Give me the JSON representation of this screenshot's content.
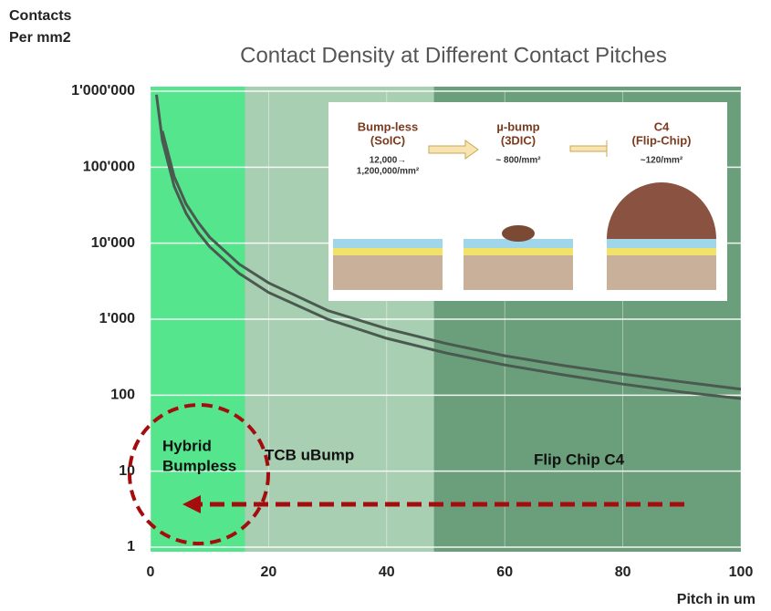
{
  "chart_data": {
    "type": "line",
    "title": "Contact Density  at Different Contact Pitches",
    "y_label": [
      "Contacts",
      "Per mm2"
    ],
    "x_label": "Pitch in um",
    "x": [
      1,
      2,
      4,
      6,
      8,
      10,
      15,
      20,
      30,
      40,
      50,
      60,
      70,
      80,
      90,
      100
    ],
    "series": [
      {
        "color": "#4a5a50",
        "values": [
          null,
          300000,
          75000,
          33000,
          19000,
          12000,
          5300,
          3000,
          1300,
          750,
          480,
          330,
          245,
          190,
          150,
          120
        ]
      },
      {
        "color": "#4a5a50",
        "values": [
          900000,
          225000,
          56000,
          25000,
          14000,
          9000,
          4000,
          2250,
          1000,
          560,
          360,
          250,
          185,
          140,
          110,
          90
        ]
      }
    ],
    "log_y": true,
    "grid": true,
    "xlim": [
      0,
      100
    ],
    "xticks": [
      0,
      20,
      40,
      60,
      80,
      100
    ],
    "ylim": [
      1,
      1000000
    ],
    "yticks": [
      1,
      10,
      100,
      {
        "value": 1000,
        "label": "1'000"
      },
      {
        "value": 10000,
        "label": "10'000"
      },
      {
        "value": 100000,
        "label": "100'000"
      },
      {
        "value": 1000000,
        "label": "1'000'000"
      }
    ],
    "regions": [
      {
        "x": [
          0,
          16
        ],
        "color": "#55e58c",
        "label": [
          "Hybrid",
          "Bumpless"
        ]
      },
      {
        "x": [
          16,
          48
        ],
        "color": "#a9cfb3",
        "label": [
          "TCB  uBump"
        ]
      },
      {
        "x": [
          48,
          100
        ],
        "color": "#6b9f7b",
        "label": [
          "Flip Chip  C4"
        ]
      }
    ],
    "inset": [
      {
        "lines": [
          "Bump-less",
          "(SoIC)"
        ],
        "density": [
          "12,000→",
          "1,200,000/mm²"
        ]
      },
      {
        "lines": [
          "µ-bump",
          "(3DIC)"
        ],
        "density": [
          "~ 800/mm²"
        ]
      },
      {
        "lines": [
          "C4",
          "(Flip-Chip)"
        ],
        "density": [
          "~120/mm²"
        ]
      }
    ]
  }
}
